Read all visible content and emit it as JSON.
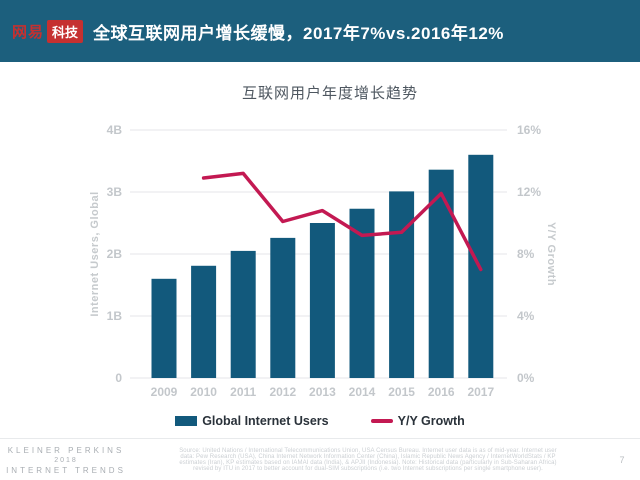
{
  "header": {
    "logo_brand": "网易",
    "logo_sub": "科技",
    "title": "全球互联网用户增长缓慢，2017年7%vs.2016年12%",
    "bg_color": "#1C5F7D",
    "logo_red": "#C53030"
  },
  "chart": {
    "title": "互联网用户年度增长趋势"
  },
  "chart_data": {
    "type": "combo",
    "title": "互联网用户年度增长趋势",
    "categories": [
      "2009",
      "2010",
      "2011",
      "2012",
      "2013",
      "2014",
      "2015",
      "2016",
      "2017"
    ],
    "series": [
      {
        "name": "Global Internet Users",
        "type": "bar",
        "axis": "left",
        "unit": "B",
        "color": "#12597C",
        "values": [
          1.6,
          1.81,
          2.05,
          2.26,
          2.5,
          2.73,
          3.01,
          3.36,
          3.6
        ]
      },
      {
        "name": "Y/Y Growth",
        "type": "line",
        "axis": "right",
        "unit": "%",
        "color": "#C31952",
        "values": [
          null,
          12.9,
          13.2,
          10.1,
          10.8,
          9.2,
          9.4,
          11.9,
          7.0
        ]
      }
    ],
    "left_axis": {
      "label": "Internet Users, Global",
      "min": 0,
      "max": 4,
      "ticks": [
        "0",
        "1B",
        "2B",
        "3B",
        "4B"
      ]
    },
    "right_axis": {
      "label": "Y/Y Growth",
      "min": 0,
      "max": 16,
      "ticks": [
        "0%",
        "4%",
        "8%",
        "12%",
        "16%"
      ]
    },
    "grid": true,
    "legend_position": "bottom",
    "grid_color": "#E4E6E8"
  },
  "legend": {
    "items": [
      {
        "label": "Global Internet Users",
        "color": "#12597C",
        "type": "bar"
      },
      {
        "label": "Y/Y Growth",
        "color": "#C31952",
        "type": "line"
      }
    ]
  },
  "footer": {
    "brand_lines": [
      "KLEINER PERKINS",
      "2018",
      "INTERNET TRENDS"
    ],
    "source_lines": [
      "Source: United Nations / International Telecommunications Union, USA Census Bureau. Internet user data is as of mid-year. Internet user",
      "data: Pew Research (USA), China Internet Network Information Center (China), Islamic Republic News Agency / InternetWorldStats / KP",
      "estimates (Iran), KP estimates based on IAMAI data (India), & APJII (Indonesia). Note: Historical data (particularly in Sub-Saharan Africa)",
      "revised by ITU in 2017 to better account for dual-SIM subscriptions (i.e. two Internet subscriptions per single smartphone user)."
    ],
    "page_number": "7"
  }
}
